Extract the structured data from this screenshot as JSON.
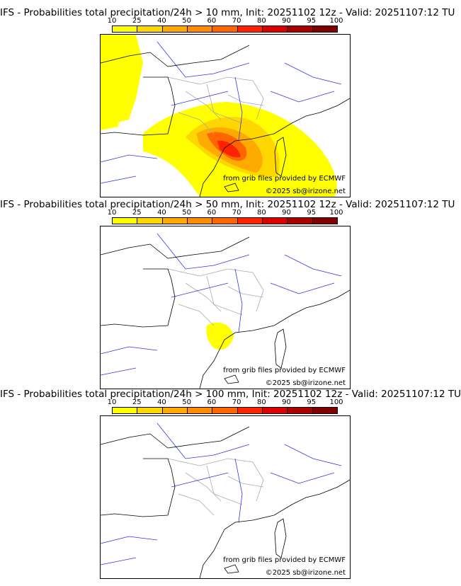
{
  "colorbar": {
    "ticks": [
      "10",
      "25",
      "40",
      "50",
      "60",
      "70",
      "80",
      "90",
      "95",
      "100"
    ],
    "colors": [
      "#ffff00",
      "#ffd700",
      "#ffaa00",
      "#ff8c00",
      "#ff6600",
      "#ff2200",
      "#dd0000",
      "#aa0000",
      "#800000"
    ]
  },
  "panels": [
    {
      "title": "IFS - Probabilities total precipitation/24h > 10 mm, Init: 20251102 12z - Valid: 20251107:12 TU",
      "level": "p10"
    },
    {
      "title": "IFS - Probabilities total precipitation/24h > 50 mm, Init: 20251102 12z - Valid: 20251107:12 TU",
      "level": "p50"
    },
    {
      "title": "IFS - Probabilities total precipitation/24h > 100 mm, Init: 20251102 12z - Valid: 20251107:12 TU",
      "level": "p100"
    }
  ],
  "credits": {
    "source": "from grib files provided by ECMWF",
    "copyright": "©2025 sb@irizone.net"
  }
}
